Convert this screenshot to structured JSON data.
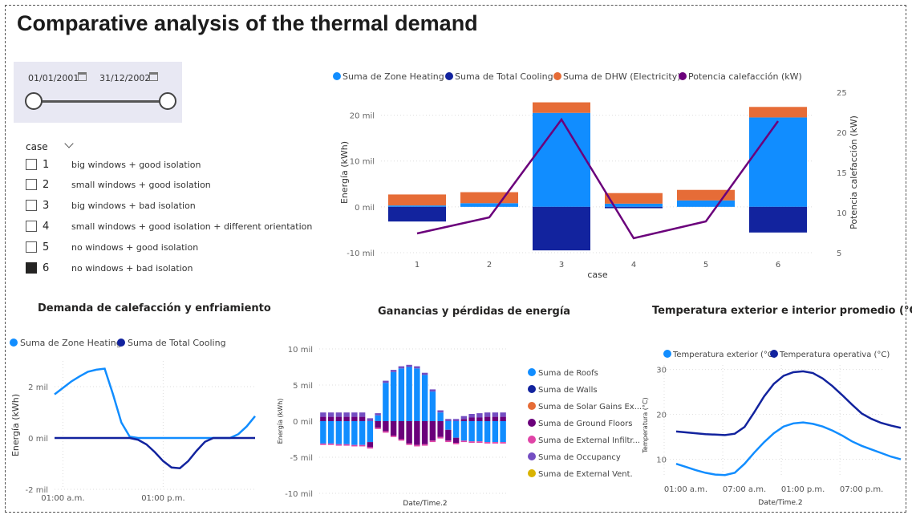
{
  "page": {
    "title": "Comparative analysis of the thermal demand"
  },
  "date_slicer": {
    "start": "01/01/2001",
    "end": "31/12/2002",
    "icon": "calendar-icon"
  },
  "case_slicer": {
    "header": "case",
    "items": [
      {
        "num": "1",
        "label": "big windows + good isolation",
        "checked": false
      },
      {
        "num": "2",
        "label": "small windows + good isolation",
        "checked": false
      },
      {
        "num": "3",
        "label": "big windows + bad isolation",
        "checked": false
      },
      {
        "num": "4",
        "label": "small windows + good isolation + different orientation",
        "checked": false
      },
      {
        "num": "5",
        "label": "no windows + good isolation",
        "checked": false
      },
      {
        "num": "6",
        "label": "no windows + bad isolation",
        "checked": true
      }
    ]
  },
  "colors": {
    "zone_heating": "#118dff",
    "total_cooling": "#12239e",
    "dhw": "#e66c37",
    "potencia": "#6b007b",
    "roofs": "#118dff",
    "walls": "#12239e",
    "solar": "#e66c37",
    "ground": "#6b007b",
    "infiltr": "#e044a7",
    "occupancy": "#744ec2",
    "vent": "#d9b300",
    "t_ext": "#118dff",
    "t_op": "#12239e"
  },
  "chart_data": [
    {
      "type": "bar",
      "title": "",
      "legend": [
        "Suma de Zone Heating",
        "Suma de Total Cooling",
        "Suma de DHW (Electricity)",
        "Potencia calefacción (kW)"
      ],
      "legend_position": "top",
      "xlabel": "case",
      "ylabel": "Energía (kWh)",
      "y2label": "Potencia calefacción (kW)",
      "categories": [
        "1",
        "2",
        "3",
        "4",
        "5",
        "6"
      ],
      "ylim": [
        -10000,
        25000
      ],
      "yticks": [
        -10000,
        0,
        10000,
        20000
      ],
      "ytick_labels": [
        "-10 mil",
        "0 mil",
        "10 mil",
        "20 mil"
      ],
      "y2lim": [
        5,
        25
      ],
      "y2ticks": [
        5,
        10,
        15,
        20,
        25
      ],
      "series": [
        {
          "name": "Suma de Zone Heating",
          "values": [
            300,
            800,
            20500,
            700,
            1400,
            19500
          ]
        },
        {
          "name": "Suma de Total Cooling",
          "values": [
            -3200,
            0,
            -9500,
            -300,
            0,
            -5600
          ]
        },
        {
          "name": "Suma de DHW (Electricity)",
          "values": [
            2400,
            2400,
            2300,
            2300,
            2300,
            2300
          ]
        },
        {
          "name": "Potencia calefacción (kW)",
          "axis": "secondary",
          "values": [
            7.4,
            9.4,
            21.6,
            6.8,
            8.9,
            21.4
          ]
        }
      ]
    },
    {
      "type": "line",
      "title": "Demanda de calefacción y enfriamiento",
      "legend": [
        "Suma de Zone Heating",
        "Suma de Total Cooling"
      ],
      "ylabel": "Energía (kWh)",
      "x_tick_labels": [
        "01:00 a.m.",
        "01:00 p.m."
      ],
      "x_tick_hours": [
        1,
        13
      ],
      "ylim": [
        -2000,
        3000
      ],
      "yticks": [
        -2000,
        0,
        2000
      ],
      "ytick_labels": [
        "-2 mil",
        "0 mil",
        "2 mil"
      ],
      "x": [
        0,
        1,
        2,
        3,
        4,
        5,
        6,
        7,
        8,
        9,
        10,
        11,
        12,
        13,
        14,
        15,
        16,
        17,
        18,
        19,
        20,
        21,
        22,
        23,
        24
      ],
      "series": [
        {
          "name": "Suma de Zone Heating",
          "values": [
            1700,
            1950,
            2200,
            2400,
            2580,
            2660,
            2700,
            1700,
            600,
            50,
            0,
            0,
            0,
            0,
            0,
            0,
            0,
            0,
            0,
            0,
            0,
            0,
            150,
            450,
            850
          ]
        },
        {
          "name": "Suma de Total Cooling",
          "values": [
            0,
            0,
            0,
            0,
            0,
            0,
            0,
            0,
            0,
            0,
            -70,
            -250,
            -550,
            -900,
            -1150,
            -1180,
            -900,
            -500,
            -150,
            0,
            0,
            0,
            0,
            0,
            0
          ]
        }
      ]
    },
    {
      "type": "bar",
      "title": "Ganancias y pérdidas de energía",
      "xlabel": "Date/Time.2",
      "ylabel": "Energía (kWh)",
      "legend": [
        "Suma de Roofs",
        "Suma de Walls",
        "Suma de Solar Gains Ex...",
        "Suma de Ground Floors",
        "Suma de External Infiltr...",
        "Suma de Occupancy",
        "Suma de External Vent."
      ],
      "legend_position": "right",
      "ylim": [
        -10000,
        10000
      ],
      "yticks": [
        -10000,
        -5000,
        0,
        5000,
        10000
      ],
      "ytick_labels": [
        "-10 mil",
        "-5 mil",
        "0 mil",
        "5 mil",
        "10 mil"
      ],
      "stacked": true,
      "categories_count": 24,
      "series": [
        {
          "name": "Suma de Roofs",
          "values": [
            -3100,
            -3100,
            -3200,
            -3200,
            -3300,
            -3300,
            -2900,
            800,
            5300,
            6800,
            7300,
            7500,
            7300,
            6400,
            4100,
            1200,
            -1200,
            -2300,
            -2700,
            -2800,
            -2800,
            -2900,
            -2900,
            -2900
          ]
        },
        {
          "name": "Suma de Walls",
          "values": [
            0,
            0,
            0,
            0,
            0,
            0,
            0,
            0,
            0,
            0,
            0,
            0,
            0,
            0,
            0,
            0,
            0,
            0,
            0,
            0,
            0,
            0,
            0,
            0
          ]
        },
        {
          "name": "Suma de Solar Gains Ex...",
          "values": [
            0,
            0,
            0,
            0,
            0,
            0,
            0,
            0,
            0,
            0,
            0,
            0,
            0,
            0,
            0,
            0,
            0,
            0,
            0,
            0,
            0,
            0,
            0,
            0
          ]
        },
        {
          "name": "Suma de Ground Floors",
          "values": [
            600,
            600,
            600,
            600,
            600,
            600,
            -700,
            -900,
            -1400,
            -2000,
            -2500,
            -3100,
            -3300,
            -3200,
            -2700,
            -2200,
            -1500,
            -700,
            300,
            500,
            500,
            600,
            600,
            600
          ]
        },
        {
          "name": "Suma de External Infiltr...",
          "values": [
            -200,
            -200,
            -200,
            -200,
            -200,
            -200,
            -200,
            -200,
            -200,
            -200,
            -200,
            -200,
            -200,
            -200,
            -200,
            -200,
            -200,
            -200,
            -200,
            -200,
            -200,
            -200,
            -200,
            -200
          ]
        },
        {
          "name": "Suma de Occupancy",
          "values": [
            600,
            600,
            600,
            600,
            600,
            600,
            400,
            300,
            300,
            300,
            300,
            300,
            300,
            300,
            300,
            300,
            300,
            300,
            400,
            500,
            600,
            600,
            600,
            600
          ]
        },
        {
          "name": "Suma de External Vent.",
          "values": [
            0,
            0,
            0,
            0,
            0,
            0,
            0,
            0,
            0,
            0,
            0,
            0,
            0,
            0,
            0,
            0,
            0,
            0,
            0,
            0,
            0,
            0,
            0,
            0
          ]
        }
      ]
    },
    {
      "type": "line",
      "title": "Temperatura exterior e interior promedio (°C)",
      "legend": [
        "Temperatura exterior (°C)",
        "Temperatura operativa (°C)"
      ],
      "xlabel": "Date/Time.2",
      "ylabel": "Temperatura (°C)",
      "x_tick_labels": [
        "01:00 a.m.",
        "07:00 a.m.",
        "01:00 p.m.",
        "07:00 p.m."
      ],
      "x_tick_hours": [
        1,
        7,
        13,
        19
      ],
      "ylim": [
        6,
        31
      ],
      "yticks": [
        10,
        20,
        30
      ],
      "x": [
        1,
        2,
        3,
        4,
        5,
        6,
        7,
        8,
        9,
        10,
        11,
        12,
        13,
        14,
        15,
        16,
        17,
        18,
        19,
        20,
        21,
        22,
        23,
        24
      ],
      "series": [
        {
          "name": "Temperatura exterior (°C)",
          "values": [
            9,
            8.3,
            7.6,
            7,
            6.6,
            6.5,
            7,
            9,
            11.5,
            13.8,
            15.8,
            17.3,
            18,
            18.2,
            17.9,
            17.3,
            16.4,
            15.3,
            14,
            13,
            12.2,
            11.4,
            10.6,
            10
          ]
        },
        {
          "name": "Temperatura operativa (°C)",
          "values": [
            16.2,
            16,
            15.8,
            15.6,
            15.5,
            15.4,
            15.7,
            17.2,
            20.5,
            24,
            26.8,
            28.6,
            29.4,
            29.6,
            29.2,
            28,
            26.3,
            24.3,
            22.2,
            20.2,
            19,
            18.1,
            17.5,
            17
          ]
        }
      ]
    }
  ]
}
